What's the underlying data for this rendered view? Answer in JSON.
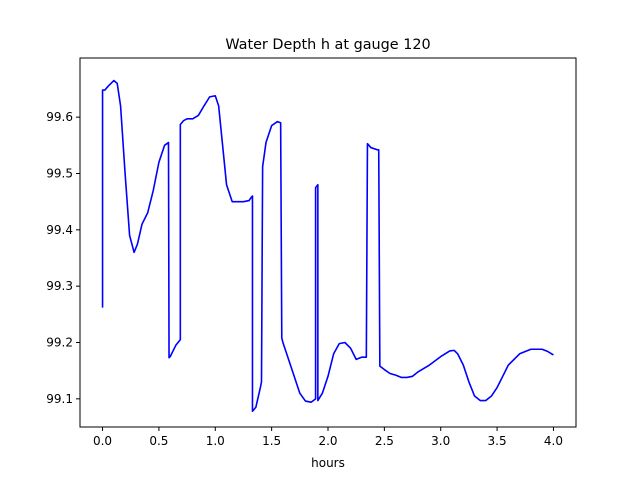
{
  "chart_data": {
    "type": "line",
    "title": "Water Depth h at gauge 120",
    "xlabel": "hours",
    "ylabel": "",
    "xlim": [
      -0.2,
      4.2
    ],
    "ylim": [
      99.05,
      99.705
    ],
    "xticks": [
      0.0,
      0.5,
      1.0,
      1.5,
      2.0,
      2.5,
      3.0,
      3.5,
      4.0
    ],
    "xtick_labels": [
      "0.0",
      "0.5",
      "1.0",
      "1.5",
      "2.0",
      "2.5",
      "3.0",
      "3.5",
      "4.0"
    ],
    "yticks": [
      99.1,
      99.2,
      99.3,
      99.4,
      99.5,
      99.6
    ],
    "ytick_labels": [
      "99.1",
      "99.2",
      "99.3",
      "99.4",
      "99.5",
      "99.6"
    ],
    "grid": false,
    "series": [
      {
        "color": "#0000ff",
        "x": [
          0.0,
          0.0,
          0.02,
          0.05,
          0.1,
          0.13,
          0.16,
          0.2,
          0.24,
          0.28,
          0.31,
          0.35,
          0.4,
          0.45,
          0.5,
          0.55,
          0.585,
          0.59,
          0.6,
          0.65,
          0.69,
          0.69,
          0.72,
          0.75,
          0.8,
          0.85,
          0.9,
          0.95,
          1.0,
          1.03,
          1.06,
          1.1,
          1.15,
          1.2,
          1.25,
          1.3,
          1.32,
          1.33,
          1.33,
          1.36,
          1.4,
          1.41,
          1.42,
          1.45,
          1.5,
          1.55,
          1.58,
          1.59,
          1.6,
          1.65,
          1.7,
          1.75,
          1.8,
          1.85,
          1.89,
          1.89,
          1.91,
          1.91,
          1.95,
          2.0,
          2.05,
          2.1,
          2.15,
          2.2,
          2.25,
          2.3,
          2.34,
          2.35,
          2.35,
          2.38,
          2.44,
          2.45,
          2.46,
          2.5,
          2.55,
          2.6,
          2.65,
          2.7,
          2.75,
          2.8,
          2.9,
          3.0,
          3.08,
          3.12,
          3.15,
          3.2,
          3.25,
          3.3,
          3.35,
          3.4,
          3.45,
          3.5,
          3.55,
          3.6,
          3.7,
          3.8,
          3.9,
          3.95,
          4.0
        ],
        "y": [
          99.262,
          99.648,
          99.648,
          99.655,
          99.665,
          99.66,
          99.62,
          99.5,
          99.39,
          99.36,
          99.375,
          99.41,
          99.43,
          99.47,
          99.52,
          99.55,
          99.555,
          99.173,
          99.175,
          99.195,
          99.205,
          99.587,
          99.594,
          99.597,
          99.597,
          99.603,
          99.62,
          99.636,
          99.638,
          99.62,
          99.56,
          99.48,
          99.45,
          99.45,
          99.45,
          99.452,
          99.458,
          99.46,
          99.078,
          99.085,
          99.12,
          99.13,
          99.512,
          99.555,
          99.585,
          99.592,
          99.59,
          99.208,
          99.2,
          99.17,
          99.14,
          99.11,
          99.096,
          99.094,
          99.1,
          99.475,
          99.48,
          99.097,
          99.11,
          99.14,
          99.18,
          99.198,
          99.2,
          99.19,
          99.17,
          99.174,
          99.174,
          99.553,
          99.553,
          99.546,
          99.542,
          99.542,
          99.158,
          99.152,
          99.145,
          99.142,
          99.138,
          99.138,
          99.14,
          99.148,
          99.16,
          99.175,
          99.185,
          99.186,
          99.18,
          99.16,
          99.13,
          99.105,
          99.097,
          99.097,
          99.105,
          99.12,
          99.14,
          99.16,
          99.18,
          99.188,
          99.188,
          99.184,
          99.178
        ]
      }
    ]
  }
}
